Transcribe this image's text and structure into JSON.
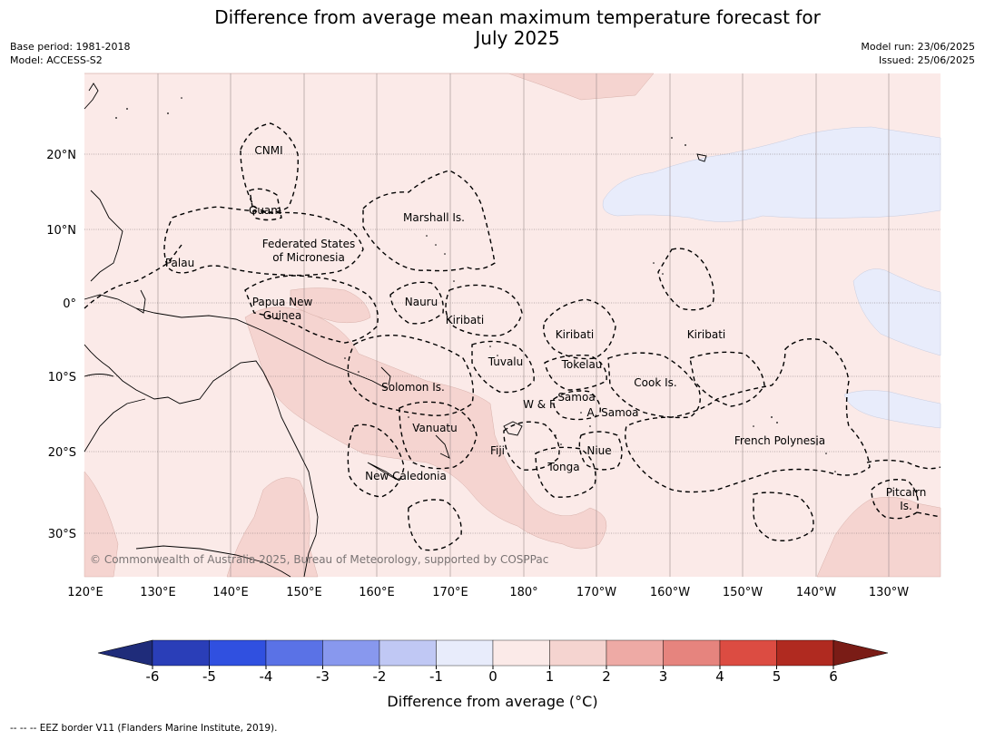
{
  "title_line1": "Difference from average mean maximum temperature forecast for",
  "title_line2": "July 2025",
  "meta_left": {
    "base_period": "Base period: 1981-2018",
    "model": "Model: ACCESS-S2"
  },
  "meta_right": {
    "model_run": "Model run: 23/06/2025",
    "issued": "Issued: 25/06/2025"
  },
  "lon_ticks": [
    "120°E",
    "130°E",
    "140°E",
    "150°E",
    "160°E",
    "170°E",
    "180°",
    "170°W",
    "160°W",
    "150°W",
    "140°W",
    "130°W"
  ],
  "lat_ticks": [
    "20°N",
    "10°N",
    "0°",
    "10°S",
    "20°S",
    "30°S"
  ],
  "regions": {
    "cnmi": "CNMI",
    "guam": "Guam",
    "marshall": "Marshall Is.",
    "fsm_1": "Federated States",
    "fsm_2": "of Micronesia",
    "palau": "Palau",
    "png_1": "Papua New",
    "png_2": "Guinea",
    "nauru": "Nauru",
    "kiribati_w": "Kiribati",
    "kiribati_c": "Kiribati",
    "kiribati_e": "Kiribati",
    "tuvalu": "Tuvalu",
    "tokelau": "Tokelau",
    "cook": "Cook Is.",
    "solomon": "Solomon Is.",
    "samoa": "Samoa",
    "wf": "W & F",
    "asamoa": "A. Samoa",
    "vanuatu": "Vanuatu",
    "fiji": "Fiji",
    "niue": "Niue",
    "tonga": "Tonga",
    "newcal": "New Caledonia",
    "frpoly": "French Polynesia",
    "pitcairn_1": "Pitcairn",
    "pitcairn_2": "Is."
  },
  "copyright": "© Commonwealth of Australia 2025, Bureau of Meteorology, supported by COSPPac",
  "colorbar": {
    "ticks": [
      "-6",
      "-5",
      "-4",
      "-3",
      "-2",
      "-1",
      "0",
      "1",
      "2",
      "3",
      "4",
      "5",
      "6"
    ],
    "colors": [
      "#1f2c7a",
      "#2a3eb8",
      "#3050e0",
      "#5a72e6",
      "#8898ee",
      "#c0c8f4",
      "#e8ecfb",
      "#fbeae8",
      "#f5d4d0",
      "#eeaaa5",
      "#e6847e",
      "#dc4c42",
      "#b02a20",
      "#7a1c16"
    ],
    "label": "Difference from average (°C)"
  },
  "footnote": "--  --  -- EEZ border V11 (Flanders Marine Institute, 2019)."
}
